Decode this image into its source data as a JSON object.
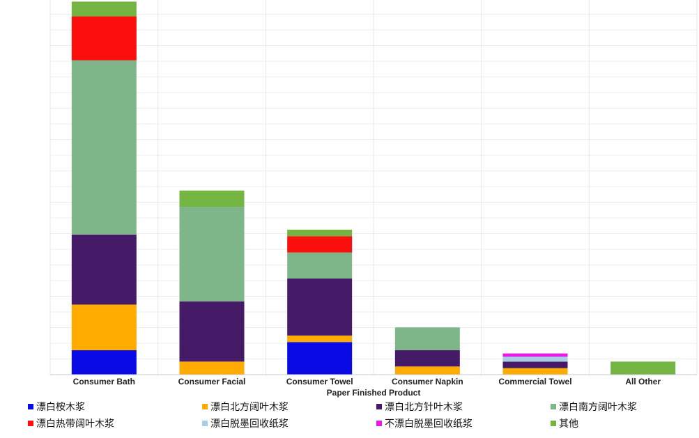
{
  "chart_data": {
    "type": "bar",
    "stacked": true,
    "title": "",
    "xlabel": "Paper Finished Product",
    "ylabel": "",
    "ylim": [
      0,
      23
    ],
    "grid": true,
    "legend_position": "bottom",
    "categories": [
      "Consumer Bath",
      "Consumer Facial",
      "Consumer Towel",
      "Consumer Napkin",
      "Commercial Towel",
      "All Other"
    ],
    "series": [
      {
        "name": "漂白桉木浆",
        "color": "#0a0ae6",
        "values": [
          1.5,
          0,
          2.0,
          0,
          0,
          0
        ]
      },
      {
        "name": "漂白北方阔叶木浆",
        "color": "#ffab00",
        "values": [
          2.8,
          0.8,
          0.4,
          0.5,
          0.4,
          0
        ]
      },
      {
        "name": "漂白北方针叶木浆",
        "color": "#451a66",
        "values": [
          4.3,
          3.7,
          3.5,
          1.0,
          0.4,
          0
        ]
      },
      {
        "name": "漂白南方阔叶木浆",
        "color": "#7fb689",
        "values": [
          10.7,
          5.8,
          1.6,
          1.4,
          0,
          0
        ]
      },
      {
        "name": "漂白热带阔叶木浆",
        "color": "#fb0f0c",
        "values": [
          2.7,
          0,
          1.0,
          0,
          0,
          0
        ]
      },
      {
        "name": "漂白脱墨回收纸浆",
        "color": "#a9cde3",
        "values": [
          0,
          0,
          0,
          0,
          0.3,
          0
        ]
      },
      {
        "name": "不漂白脱墨回收纸浆",
        "color": "#e619e6",
        "values": [
          0,
          0,
          0,
          0,
          0.2,
          0
        ]
      },
      {
        "name": "其他",
        "color": "#74b443",
        "values": [
          0.9,
          1.0,
          0.4,
          0,
          0,
          0.8
        ]
      }
    ]
  }
}
